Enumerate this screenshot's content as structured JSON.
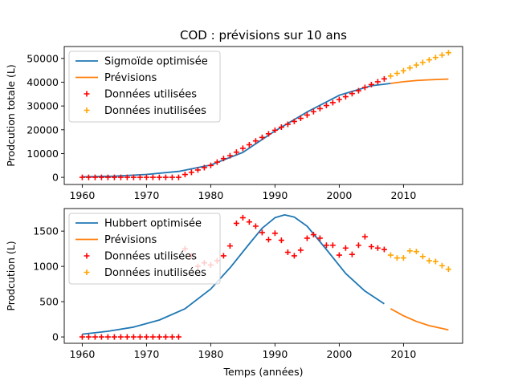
{
  "chart_data": [
    {
      "type": "line",
      "title": "COD : prévisions sur 10 ans",
      "xlabel": "",
      "ylabel": "Prodcution totale (L)",
      "xlim": [
        1957.2,
        2019.2
      ],
      "ylim": [
        -3000,
        55000
      ],
      "xticks": [
        1960,
        1970,
        1980,
        1990,
        2000,
        2010
      ],
      "yticks": [
        0,
        10000,
        20000,
        30000,
        40000,
        50000
      ],
      "grid": false,
      "legend_position": "top-left",
      "colors": {
        "fit": "#1f77b4",
        "forecast": "#ff7f0e",
        "used": "#ff0000",
        "unused": "#ffa500"
      },
      "series": [
        {
          "name": "Sigmoïde optimisée",
          "kind": "line",
          "color": "#1f77b4",
          "x": [
            1960,
            1965,
            1970,
            1975,
            1980,
            1985,
            1990,
            1995,
            2000,
            2005,
            2008
          ],
          "y": [
            200,
            500,
            1200,
            2500,
            5200,
            10500,
            19500,
            27500,
            34500,
            38500,
            39500
          ]
        },
        {
          "name": "Prévisions",
          "kind": "line",
          "color": "#ff7f0e",
          "x": [
            2008,
            2010,
            2012,
            2014,
            2016,
            2017
          ],
          "y": [
            39500,
            40200,
            40700,
            41000,
            41200,
            41300
          ]
        },
        {
          "name": "Données utilisées",
          "kind": "scatter",
          "marker": "+",
          "color": "#ff0000",
          "x": [
            1960,
            1961,
            1962,
            1963,
            1964,
            1965,
            1966,
            1967,
            1968,
            1969,
            1970,
            1971,
            1972,
            1973,
            1974,
            1975,
            1976,
            1977,
            1978,
            1979,
            1980,
            1981,
            1982,
            1983,
            1984,
            1985,
            1986,
            1987,
            1988,
            1989,
            1990,
            1991,
            1992,
            1993,
            1994,
            1995,
            1996,
            1997,
            1998,
            1999,
            2000,
            2001,
            2002,
            2003,
            2004,
            2005,
            2006,
            2007
          ],
          "y": [
            0,
            0,
            0,
            0,
            0,
            0,
            0,
            0,
            0,
            0,
            0,
            0,
            0,
            0,
            0,
            0,
            1200,
            2100,
            3100,
            4100,
            5000,
            6400,
            7900,
            9100,
            10600,
            12200,
            13700,
            15300,
            16800,
            18300,
            19800,
            21100,
            22300,
            23500,
            24800,
            26200,
            27600,
            28900,
            30200,
            31400,
            32700,
            33900,
            35200,
            36400,
            37800,
            39000,
            40200,
            41400
          ]
        },
        {
          "name": "Données inutilisées",
          "kind": "scatter",
          "marker": "+",
          "color": "#ffa500",
          "x": [
            2008,
            2009,
            2010,
            2011,
            2012,
            2013,
            2014,
            2015,
            2016,
            2017
          ],
          "y": [
            42600,
            43700,
            44800,
            46000,
            47200,
            48300,
            49400,
            50400,
            51400,
            52400
          ]
        }
      ]
    },
    {
      "type": "line",
      "title": "",
      "xlabel": "Temps (années)",
      "ylabel": "Prodcution (L)",
      "xlim": [
        1957.2,
        2019.2
      ],
      "ylim": [
        -90,
        1820
      ],
      "xticks": [
        1960,
        1970,
        1980,
        1990,
        2000,
        2010
      ],
      "yticks": [
        0,
        500,
        1000,
        1500
      ],
      "grid": false,
      "legend_position": "top-left",
      "colors": {
        "fit": "#1f77b4",
        "forecast": "#ff7f0e",
        "used": "#ff0000",
        "unused": "#ffa500"
      },
      "series": [
        {
          "name": "Hubbert optimisée",
          "kind": "line",
          "color": "#1f77b4",
          "x": [
            1960,
            1964,
            1968,
            1972,
            1976,
            1980,
            1983,
            1986,
            1988,
            1990,
            1991.5,
            1993,
            1995,
            1998,
            2001,
            2004,
            2007
          ],
          "y": [
            40,
            80,
            140,
            240,
            400,
            680,
            980,
            1320,
            1540,
            1690,
            1730,
            1700,
            1570,
            1240,
            900,
            650,
            470
          ]
        },
        {
          "name": "Prévisions",
          "kind": "line",
          "color": "#ff7f0e",
          "x": [
            2008,
            2010,
            2012,
            2014,
            2016,
            2017
          ],
          "y": [
            400,
            300,
            220,
            160,
            120,
            100
          ]
        },
        {
          "name": "Données utilisées",
          "kind": "scatter",
          "marker": "+",
          "color": "#ff0000",
          "x": [
            1960,
            1961,
            1962,
            1963,
            1964,
            1965,
            1966,
            1967,
            1968,
            1969,
            1970,
            1971,
            1972,
            1973,
            1974,
            1975,
            1976,
            1977,
            1978,
            1979,
            1980,
            1981,
            1982,
            1983,
            1984,
            1985,
            1986,
            1987,
            1988,
            1989,
            1990,
            1991,
            1992,
            1993,
            1994,
            1995,
            1996,
            1997,
            1998,
            1999,
            2000,
            2001,
            2002,
            2003,
            2004,
            2005,
            2006,
            2007
          ],
          "y": [
            0,
            0,
            0,
            0,
            0,
            0,
            0,
            0,
            0,
            0,
            0,
            0,
            0,
            0,
            0,
            0,
            1250,
            1150,
            1000,
            1050,
            1020,
            1080,
            1150,
            1290,
            1610,
            1690,
            1630,
            1570,
            1480,
            1380,
            1470,
            1370,
            1200,
            1150,
            1230,
            1400,
            1450,
            1400,
            1300,
            1300,
            1160,
            1260,
            1170,
            1300,
            1420,
            1280,
            1260,
            1240
          ]
        },
        {
          "name": "Données inutilisées",
          "kind": "scatter",
          "marker": "+",
          "color": "#ffa500",
          "x": [
            2008,
            2009,
            2010,
            2011,
            2012,
            2013,
            2014,
            2015,
            2016,
            2017
          ],
          "y": [
            1160,
            1120,
            1120,
            1220,
            1210,
            1140,
            1080,
            1070,
            1010,
            960
          ]
        }
      ]
    }
  ]
}
